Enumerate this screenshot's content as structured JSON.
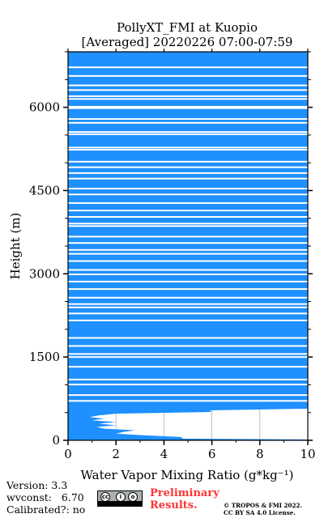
{
  "chart_data": {
    "type": "line",
    "title_line1": "PollyXT_FMI at Kuopio",
    "title_line2": "[Averaged] 20220226 07:00-07:59",
    "xlabel": "Water Vapor Mixing Ratio (g*kg⁻¹)",
    "ylabel": "Height (m)",
    "xlim": [
      0,
      10
    ],
    "ylim": [
      0,
      7000
    ],
    "xticks": [
      "0",
      "2",
      "4",
      "6",
      "8",
      "10"
    ],
    "yticks": [
      "0",
      "1500",
      "3000",
      "4500",
      "6000"
    ],
    "grid": "vertical at x ticks",
    "series_color": "#1e90ff",
    "profile": [
      {
        "y": 0,
        "x": 10
      },
      {
        "y": 15,
        "x": 10
      },
      {
        "y": 30,
        "x": 4.8
      },
      {
        "y": 60,
        "x": 4.7
      },
      {
        "y": 90,
        "x": 3.2
      },
      {
        "y": 120,
        "x": 2.0
      },
      {
        "y": 150,
        "x": 2.3
      },
      {
        "y": 180,
        "x": 2.8
      },
      {
        "y": 210,
        "x": 1.5
      },
      {
        "y": 240,
        "x": 1.2
      },
      {
        "y": 270,
        "x": 2.0
      },
      {
        "y": 300,
        "x": 1.3
      },
      {
        "y": 330,
        "x": 2.0
      },
      {
        "y": 360,
        "x": 1.0
      },
      {
        "y": 390,
        "x": 1.5
      },
      {
        "y": 420,
        "x": 0.9
      },
      {
        "y": 450,
        "x": 1.3
      },
      {
        "y": 480,
        "x": 2.0
      },
      {
        "y": 510,
        "x": 6.0
      },
      {
        "y": 540,
        "x": 5.9
      },
      {
        "y": 570,
        "x": 10
      },
      {
        "y": 1500,
        "x": 10
      },
      {
        "y": 7000,
        "x": 10
      }
    ],
    "gap_heights": [
      710,
      815,
      1005,
      1095,
      1325,
      1500,
      1555,
      1700,
      1845,
      2160,
      2285,
      2395,
      2455,
      2570,
      2725,
      2860,
      2990,
      3070,
      3230,
      3360,
      3430,
      3555,
      3670,
      3860,
      3905,
      4025,
      4140,
      4275,
      4430,
      4535,
      4715,
      4815,
      4920,
      5020,
      5235,
      5275,
      5515,
      5555,
      5720,
      5790,
      5985,
      6010,
      6150,
      6200,
      6310,
      6395,
      6565,
      6720
    ]
  },
  "footer": {
    "version": "Version: 3.3",
    "wvconst": "wvconst:   6.70",
    "calibrated": "Calibrated?: no",
    "preliminary_line1": "Preliminary",
    "preliminary_line2": "Results.",
    "copyright_line1": "© TROPOS & FMI 2022.",
    "copyright_line2": "CC BY SA 4.0 License.",
    "cc_badge_text": "CC BY SA"
  }
}
